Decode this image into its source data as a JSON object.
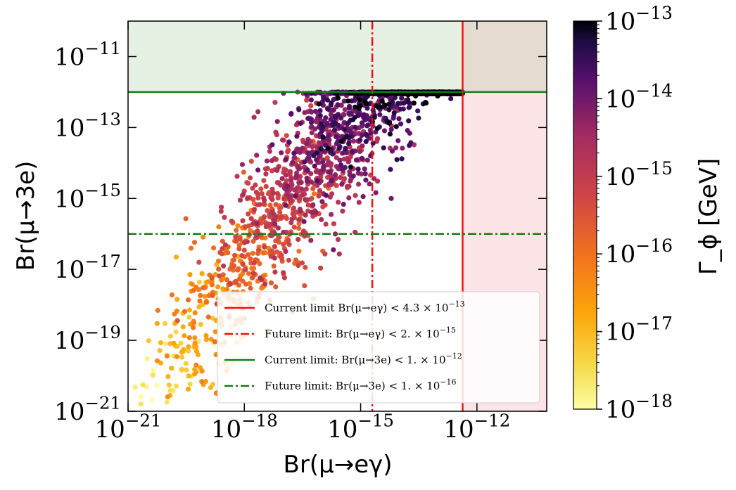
{
  "chart_data": {
    "type": "scatter",
    "xlabel": "Br(μ→eγ)",
    "ylabel": "Br(μ→3e)",
    "colorbar_label": "Γ_ϕ [GeV]",
    "x_scale": "log",
    "y_scale": "log",
    "xlim_exp": [
      -21,
      -10.2
    ],
    "ylim_exp": [
      -21,
      -10
    ],
    "x_ticks": [
      {
        "exp": -21,
        "label": "10",
        "sup": "−21"
      },
      {
        "exp": -18,
        "label": "10",
        "sup": "−18"
      },
      {
        "exp": -15,
        "label": "10",
        "sup": "−15"
      },
      {
        "exp": -12,
        "label": "10",
        "sup": "−12"
      }
    ],
    "y_ticks": [
      {
        "exp": -21,
        "label": "10",
        "sup": "−21"
      },
      {
        "exp": -19,
        "label": "10",
        "sup": "−19"
      },
      {
        "exp": -17,
        "label": "10",
        "sup": "−17"
      },
      {
        "exp": -15,
        "label": "10",
        "sup": "−15"
      },
      {
        "exp": -13,
        "label": "10",
        "sup": "−13"
      },
      {
        "exp": -11,
        "label": "10",
        "sup": "−11"
      }
    ],
    "colorbar_ticks": [
      {
        "exp": -13,
        "label": "10",
        "sup": "−13"
      },
      {
        "exp": -14,
        "label": "10",
        "sup": "−14"
      },
      {
        "exp": -15,
        "label": "10",
        "sup": "−15"
      },
      {
        "exp": -16,
        "label": "10",
        "sup": "−16"
      },
      {
        "exp": -17,
        "label": "10",
        "sup": "−17"
      },
      {
        "exp": -18,
        "label": "10",
        "sup": "−18"
      }
    ],
    "colorbar_range_exp": [
      -18,
      -13
    ],
    "limits": {
      "current_meg_exp": -12.37,
      "future_meg_exp": -14.7,
      "current_3e_exp": -12,
      "future_3e_exp": -16
    },
    "legend": [
      {
        "style": "solid",
        "color": "red",
        "text": "Current limit Br(μ→eγ) < 4.3 × 10",
        "sup": "−13"
      },
      {
        "style": "dashdot",
        "color": "red",
        "text": "Future limit: Br(μ→eγ) < 2. × 10",
        "sup": "−15"
      },
      {
        "style": "solid",
        "color": "green",
        "text": "Current limit: Br(μ→3e) < 1. × 10",
        "sup": "−12"
      },
      {
        "style": "dashdot",
        "color": "green",
        "text": "Future limit: Br(μ→3e) < 1. × 10",
        "sup": "−16"
      }
    ],
    "scatter_model": {
      "n_points": 2600,
      "x_range_exp": [
        -21,
        -12.37
      ],
      "y_max_exp": -12,
      "y_band_slope": 1.5,
      "y_band_offset": 11.5,
      "y_band_width": 2.2,
      "color_slope": 0.55,
      "color_offset": -7.0
    }
  },
  "colors": {
    "current_limit_red": "#ee1111",
    "current_limit_green": "#108010",
    "excluded_green_fill": "#e6f1e4",
    "excluded_red_fill": "#fde4e6",
    "overlap_fill": "#e6dbd0"
  }
}
